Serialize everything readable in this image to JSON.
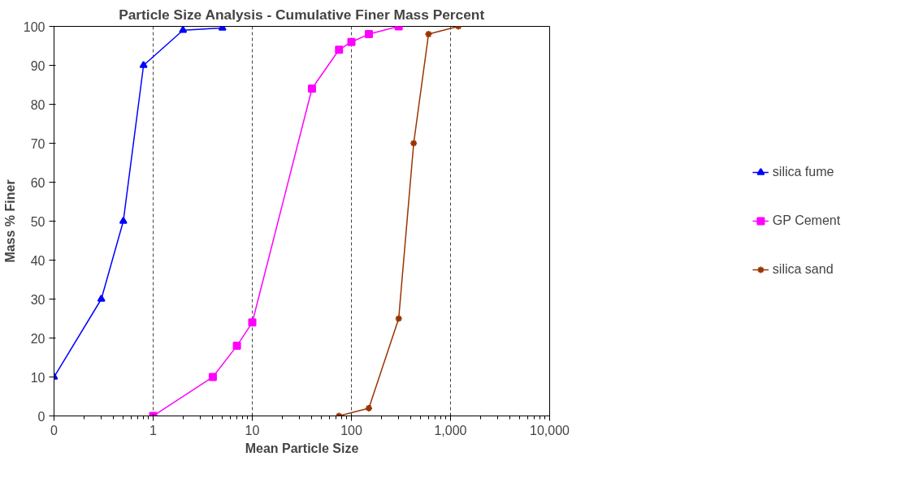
{
  "chart_data": {
    "type": "line",
    "title": "Particle Size Analysis - Cumulative Finer Mass Percent",
    "xlabel": "Mean Particle Size",
    "ylabel": "Mass % Finer",
    "log": "x",
    "xlim": [
      0.1,
      10000
    ],
    "xticks": [
      {
        "value": 0.1,
        "label": "0"
      },
      1,
      10,
      100,
      {
        "value": 1000,
        "label": "1,000"
      },
      {
        "value": 10000,
        "label": "10,000"
      }
    ],
    "ylim": [
      0,
      100
    ],
    "yticks": [
      0,
      10,
      20,
      30,
      40,
      50,
      60,
      70,
      80,
      90,
      100
    ],
    "grid": "x",
    "legend": "right",
    "series": [
      {
        "name": "silica fume",
        "color": "#0000ff",
        "marker": "triangle",
        "x": [
          0.1,
          0.3,
          0.5,
          0.8,
          2,
          5
        ],
        "values": [
          10,
          30,
          50,
          90,
          99,
          99.6
        ]
      },
      {
        "name": "GP Cement",
        "color": "#ff00ff",
        "marker": "square",
        "x": [
          1,
          4,
          7,
          10,
          40,
          75,
          100,
          150,
          300
        ],
        "values": [
          0,
          10,
          18,
          24,
          84,
          94,
          96,
          98,
          100
        ]
      },
      {
        "name": "silica sand",
        "color": "#993300",
        "marker": "cross",
        "x": [
          75,
          150,
          300,
          425,
          600,
          1200
        ],
        "values": [
          0,
          2,
          25,
          70,
          98,
          100
        ]
      }
    ]
  }
}
